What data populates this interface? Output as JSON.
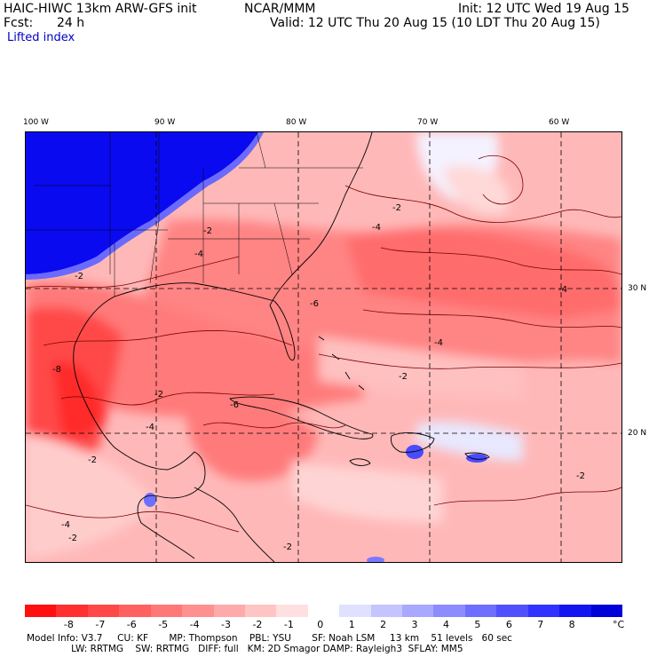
{
  "header": {
    "model_title": "HAIC-HIWC 13km ARW-GFS init",
    "center": "NCAR/MMM",
    "init_time": "Init: 12 UTC Wed 19 Aug 15",
    "fcst_label": "Fcst:",
    "fcst_value": "24 h",
    "valid_time": "Valid: 12 UTC Thu 20 Aug 15 (10 LDT Thu 20 Aug 15)",
    "field_name": "Lifted index"
  },
  "map": {
    "lon_labels": [
      "100 W",
      "90 W",
      "80 W",
      "70 W",
      "60 W"
    ],
    "lat_labels": [
      "30 N",
      "20 N"
    ],
    "contour_labels": [
      "-2",
      "-2",
      "-2",
      "-2",
      "-2",
      "-2",
      "-2",
      "-2",
      "-2",
      "-4",
      "-4",
      "-4",
      "-4",
      "-4",
      "-4",
      "-6",
      "-6",
      "-8"
    ]
  },
  "colorbar": {
    "labels": [
      "-8",
      "-7",
      "-6",
      "-5",
      "-4",
      "-3",
      "-2",
      "-1",
      "0",
      "1",
      "2",
      "3",
      "4",
      "5",
      "6",
      "7",
      "8"
    ],
    "unit": "°C",
    "colors": [
      "#ff1010",
      "#ff3030",
      "#ff4848",
      "#ff6060",
      "#ff7878",
      "#ff9090",
      "#ffaaaa",
      "#ffc4c4",
      "#ffe0e0",
      "#ffffff",
      "#e0e0ff",
      "#c4c4ff",
      "#a8a8ff",
      "#8c8cff",
      "#6e6eff",
      "#5050ff",
      "#3232ff",
      "#1414f0",
      "#0000d8"
    ]
  },
  "footer": {
    "line1": "Model Info: V3.7     CU: KF       MP: Thompson    PBL: YSU       SF: Noah LSM     13 km    51 levels   60 sec",
    "line2": "               LW: RRTMG    SW: RRTMG   DIFF: full   KM: 2D Smagor DAMP: Rayleigh3  SFLAY: MM5"
  }
}
